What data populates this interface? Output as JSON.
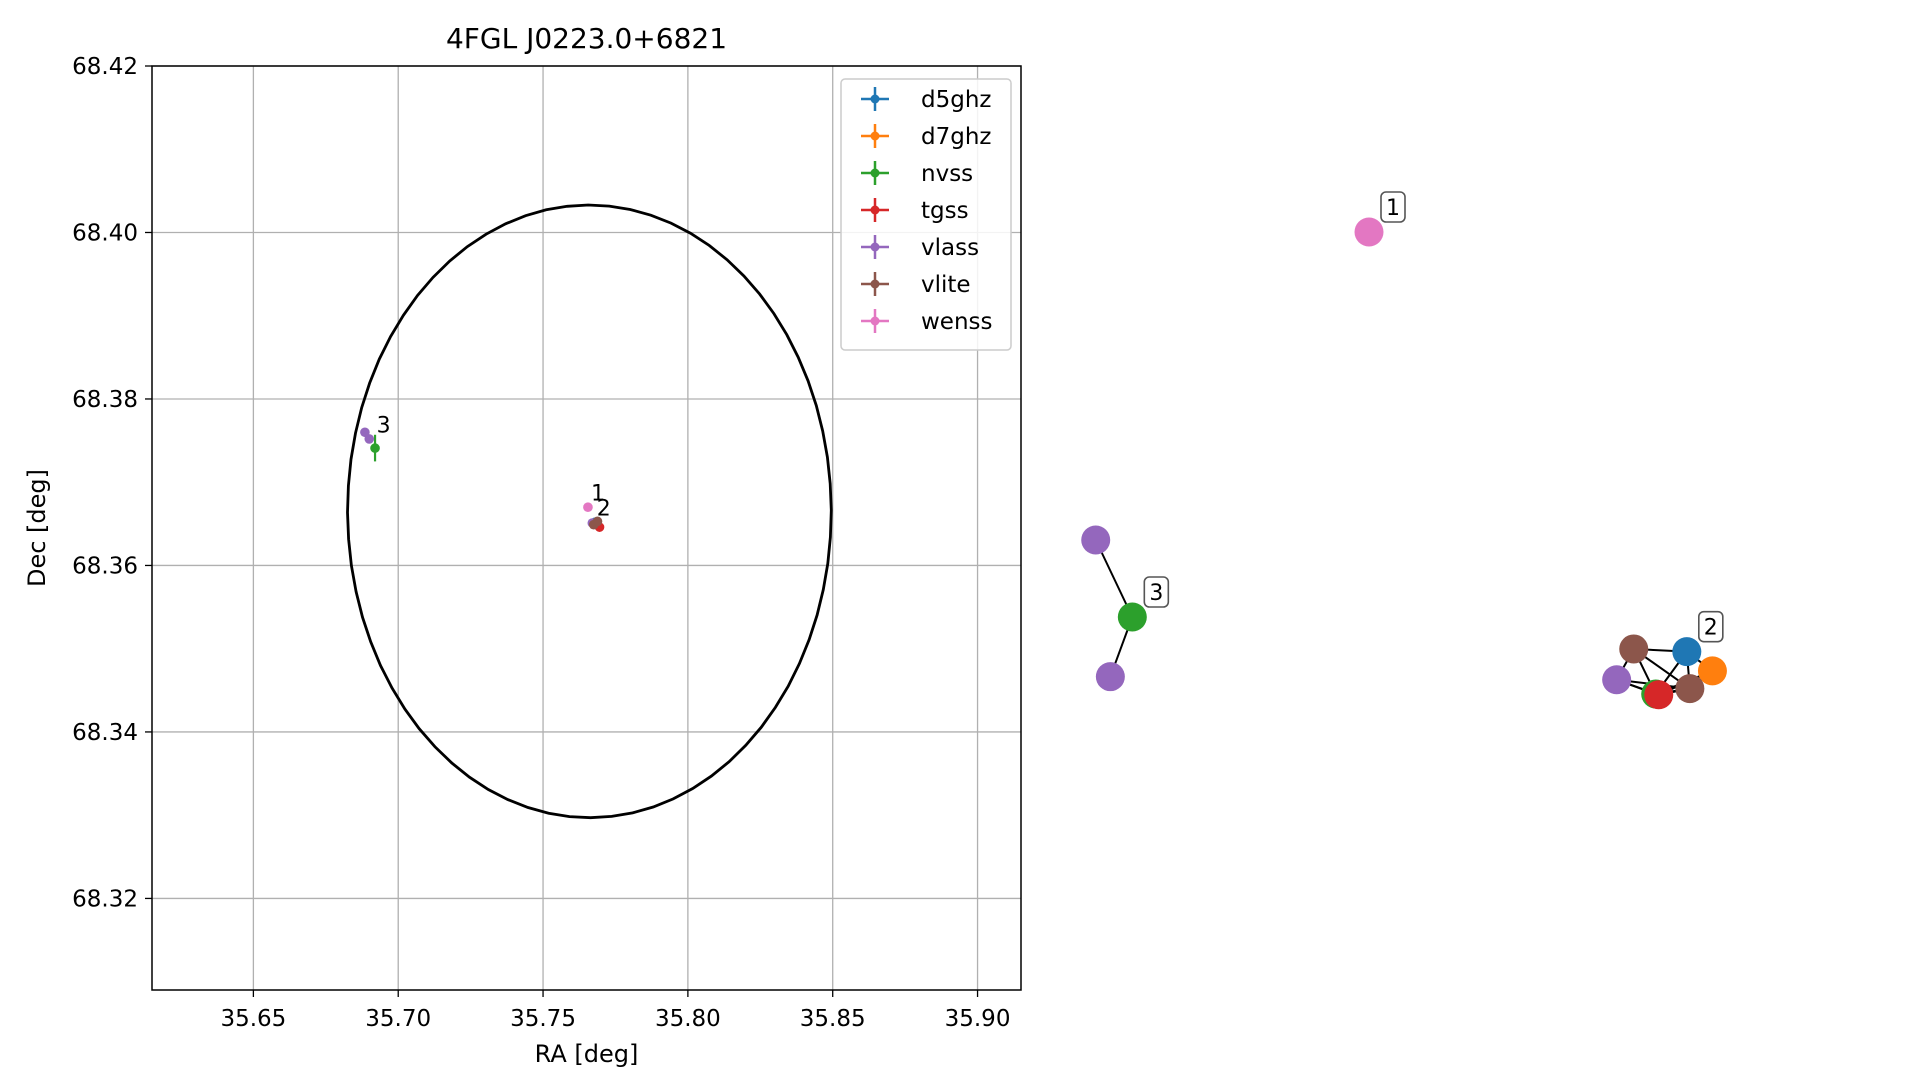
{
  "chart_data": [
    {
      "type": "scatter",
      "title": "4FGL J0223.0+6821",
      "xlabel": "RA [deg]",
      "ylabel": "Dec [deg]",
      "xlim": [
        35.615,
        35.915
      ],
      "ylim": [
        68.309,
        68.42
      ],
      "xticks": [
        35.65,
        35.7,
        35.75,
        35.8,
        35.85,
        35.9
      ],
      "xtick_labels": [
        "35.65",
        "35.70",
        "35.75",
        "35.80",
        "35.85",
        "35.90"
      ],
      "yticks": [
        68.32,
        68.34,
        68.36,
        68.38,
        68.4,
        68.42
      ],
      "ytick_labels": [
        "68.32",
        "68.34",
        "68.36",
        "68.38",
        "68.40",
        "68.42"
      ],
      "grid": true,
      "legend_position": "top-right",
      "series": [
        {
          "name": "d5ghz",
          "color": "#1f77b4",
          "points": [
            {
              "x": 35.768,
              "y": 68.3652,
              "xerr": 0.0002,
              "yerr": 0.0002
            }
          ]
        },
        {
          "name": "d7ghz",
          "color": "#ff7f0e",
          "points": [
            {
              "x": 35.7685,
              "y": 68.365,
              "xerr": 0.0002,
              "yerr": 0.0002
            }
          ]
        },
        {
          "name": "nvss",
          "color": "#2ca02c",
          "points": [
            {
              "x": 35.692,
              "y": 68.3741,
              "xerr": 0.0003,
              "yerr": 0.0016
            },
            {
              "x": 35.7682,
              "y": 68.3651,
              "xerr": 0.0003,
              "yerr": 0.0003
            }
          ]
        },
        {
          "name": "tgss",
          "color": "#d62728",
          "points": [
            {
              "x": 35.7695,
              "y": 68.3646,
              "xerr": 0.0002,
              "yerr": 0.0002
            }
          ]
        },
        {
          "name": "vlass",
          "color": "#9467bd",
          "points": [
            {
              "x": 35.6885,
              "y": 68.376,
              "xerr": 0.0001,
              "yerr": 0.0001
            },
            {
              "x": 35.69,
              "y": 68.3752,
              "xerr": 0.0001,
              "yerr": 0.0001
            },
            {
              "x": 35.767,
              "y": 68.3651,
              "xerr": 0.0001,
              "yerr": 0.0001
            }
          ]
        },
        {
          "name": "vlite",
          "color": "#8c564b",
          "points": [
            {
              "x": 35.7675,
              "y": 68.3649,
              "xerr": 0.0002,
              "yerr": 0.0002
            },
            {
              "x": 35.7688,
              "y": 68.3653,
              "xerr": 0.0002,
              "yerr": 0.0002
            }
          ]
        },
        {
          "name": "wenss",
          "color": "#e377c2",
          "points": [
            {
              "x": 35.7655,
              "y": 68.367,
              "xerr": 0.0002,
              "yerr": 0.0002
            }
          ]
        }
      ],
      "ellipse": {
        "center_x": 35.766,
        "center_y": 68.3665,
        "semi_axis_x": 0.0835,
        "semi_axis_y": 0.0368,
        "tilt": -0.083
      },
      "annotations": [
        {
          "text": "3",
          "x": 35.6915,
          "y": 68.3755
        },
        {
          "text": "1",
          "x": 35.7655,
          "y": 68.3673
        },
        {
          "text": "2",
          "x": 35.7675,
          "y": 68.3655
        }
      ]
    },
    {
      "type": "network",
      "nodes": [
        {
          "id": "wenss-1",
          "color": "#e377c2",
          "fx": 0.0,
          "fy": 0.0
        },
        {
          "id": "vlass-3a",
          "color": "#9467bd",
          "fx": -0.448,
          "fy": 0.8
        },
        {
          "id": "nvss-3",
          "color": "#2ca02c",
          "fx": -0.388,
          "fy": 1.0
        },
        {
          "id": "vlass-3b",
          "color": "#9467bd",
          "fx": -0.424,
          "fy": 1.155
        },
        {
          "id": "d5ghz-2",
          "color": "#1f77b4",
          "fx": 0.521,
          "fy": 1.09
        },
        {
          "id": "vlite-2a",
          "color": "#8c564b",
          "fx": 0.434,
          "fy": 1.083
        },
        {
          "id": "nvss-2",
          "color": "#2ca02c",
          "fx": 0.47,
          "fy": 1.2
        },
        {
          "id": "d7ghz-2",
          "color": "#ff7f0e",
          "fx": 0.563,
          "fy": 1.14
        },
        {
          "id": "tgss-2",
          "color": "#d62728",
          "fx": 0.475,
          "fy": 1.202
        },
        {
          "id": "vlass-2",
          "color": "#9467bd",
          "fx": 0.406,
          "fy": 1.163
        },
        {
          "id": "vlite-2b",
          "color": "#8c564b",
          "fx": 0.526,
          "fy": 1.186
        }
      ],
      "edges": [
        [
          "vlass-3a",
          "nvss-3"
        ],
        [
          "nvss-3",
          "vlass-3b"
        ],
        [
          "vlite-2a",
          "d5ghz-2"
        ],
        [
          "vlite-2a",
          "nvss-2"
        ],
        [
          "vlite-2a",
          "vlass-2"
        ],
        [
          "vlite-2a",
          "vlite-2b"
        ],
        [
          "d5ghz-2",
          "nvss-2"
        ],
        [
          "d5ghz-2",
          "d7ghz-2"
        ],
        [
          "d5ghz-2",
          "vlite-2b"
        ],
        [
          "nvss-2",
          "d7ghz-2"
        ],
        [
          "nvss-2",
          "tgss-2"
        ],
        [
          "nvss-2",
          "vlass-2"
        ],
        [
          "nvss-2",
          "vlite-2b"
        ],
        [
          "d7ghz-2",
          "vlite-2b"
        ],
        [
          "tgss-2",
          "vlass-2"
        ],
        [
          "tgss-2",
          "vlite-2b"
        ],
        [
          "vlass-2",
          "vlite-2b"
        ],
        [
          "d7ghz-2",
          "tgss-2"
        ]
      ],
      "labels": [
        {
          "text": "1",
          "node": "wenss-1"
        },
        {
          "text": "3",
          "node": "nvss-3"
        },
        {
          "text": "2",
          "node": "d5ghz-2"
        }
      ]
    }
  ]
}
